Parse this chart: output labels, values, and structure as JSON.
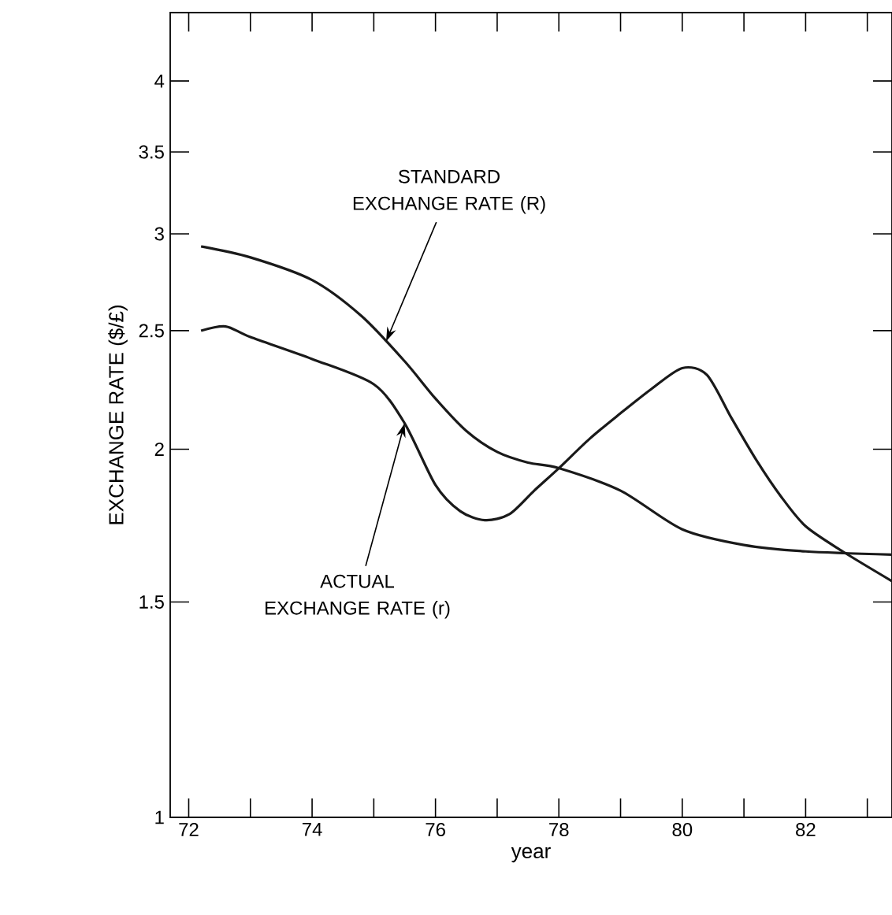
{
  "chart_data": {
    "type": "line",
    "xlabel": "year",
    "ylabel": "EXCHANGE RATE ($/£)",
    "log": "y",
    "xlim": [
      71.7,
      83.4
    ],
    "ylim": [
      1,
      4.55
    ],
    "xticks": [
      72,
      {
        "value": 73,
        "label": null
      },
      74,
      {
        "value": 75,
        "label": null
      },
      76,
      {
        "value": 77,
        "label": null
      },
      78,
      {
        "value": 79,
        "label": null
      },
      80,
      {
        "value": 81,
        "label": null
      },
      82,
      {
        "value": 83,
        "label": null
      }
    ],
    "yticks": [
      1,
      1.5,
      2,
      2.5,
      3,
      3.5,
      4
    ],
    "marker": "none",
    "line_style": "solid",
    "series": [
      {
        "color": "#1a1a1a",
        "x": [
          72.2,
          73,
          74,
          74.8,
          75.5,
          76,
          76.5,
          77,
          77.5,
          78,
          79,
          80,
          81,
          82,
          83.4
        ],
        "values": [
          2.93,
          2.87,
          2.75,
          2.57,
          2.36,
          2.2,
          2.07,
          1.99,
          1.95,
          1.93,
          1.85,
          1.72,
          1.67,
          1.65,
          1.64
        ]
      },
      {
        "color": "#1a1a1a",
        "x": [
          72.2,
          72.6,
          73,
          74,
          75,
          75.5,
          76,
          76.4,
          76.8,
          77.2,
          77.6,
          78,
          78.5,
          79,
          79.5,
          80,
          80.4,
          80.8,
          81.2,
          81.6,
          82,
          82.6,
          83.4
        ],
        "values": [
          2.5,
          2.52,
          2.47,
          2.37,
          2.26,
          2.1,
          1.87,
          1.78,
          1.75,
          1.77,
          1.85,
          1.93,
          2.04,
          2.14,
          2.24,
          2.33,
          2.3,
          2.12,
          1.96,
          1.83,
          1.73,
          1.65,
          1.56
        ]
      }
    ],
    "annotations": [
      {
        "text": "STANDARD EXCHANGE RATE (R)",
        "x": 75.2,
        "y": 2.45
      },
      {
        "text": "ACTUAL EXCHANGE RATE (r)",
        "x": 75.5,
        "y": 2.1
      }
    ]
  }
}
